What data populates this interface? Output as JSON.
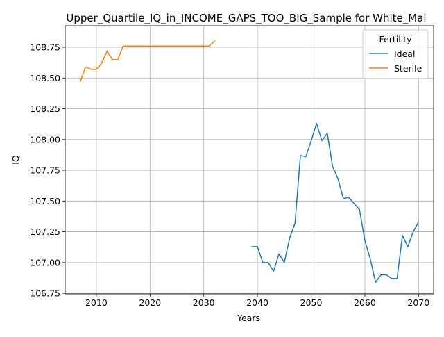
{
  "chart_data": {
    "type": "line",
    "title": "Upper_Quartile_IQ_in_INCOME_GAPS_TOO_BIG_Sample for White_Mal",
    "xlabel": "Years",
    "ylabel": "IQ",
    "xlim": [
      2004.2,
      2072.8
    ],
    "ylim": [
      106.745,
      108.925
    ],
    "xticks": [
      2010,
      2020,
      2030,
      2040,
      2050,
      2060,
      2070
    ],
    "xtick_labels": [
      "2010",
      "2020",
      "2030",
      "2040",
      "2050",
      "2060",
      "2070"
    ],
    "yticks": [
      106.75,
      107.0,
      107.25,
      107.5,
      107.75,
      108.0,
      108.25,
      108.5,
      108.75
    ],
    "ytick_labels": [
      "106.75",
      "107.00",
      "107.25",
      "107.50",
      "107.75",
      "108.00",
      "108.25",
      "108.50",
      "108.75"
    ],
    "grid": true,
    "legend": {
      "title": "Fertility",
      "placement": "top-right"
    },
    "series": [
      {
        "name": "Ideal",
        "color": "#1f77b4",
        "x": [
          2039,
          2040,
          2041,
          2042,
          2043,
          2044,
          2045,
          2046,
          2047,
          2048,
          2049,
          2050,
          2051,
          2052,
          2053,
          2054,
          2055,
          2056,
          2057,
          2058,
          2059,
          2060,
          2061,
          2062,
          2063,
          2064,
          2065,
          2066,
          2067,
          2068,
          2069,
          2070
        ],
        "y": [
          107.13,
          107.13,
          107.0,
          107.0,
          106.93,
          107.07,
          107.0,
          107.2,
          107.32,
          107.87,
          107.86,
          107.99,
          108.13,
          107.99,
          108.05,
          107.78,
          107.68,
          107.52,
          107.53,
          107.48,
          107.43,
          107.18,
          107.03,
          106.84,
          106.9,
          106.9,
          106.87,
          106.87,
          107.22,
          107.13,
          107.25,
          107.33
        ]
      },
      {
        "name": "Sterile",
        "color": "#ff7f0e",
        "x": [
          2007,
          2008,
          2009,
          2010,
          2011,
          2012,
          2013,
          2014,
          2015,
          2016,
          2017,
          2018,
          2019,
          2020,
          2021,
          2022,
          2023,
          2024,
          2025,
          2026,
          2027,
          2028,
          2029,
          2030,
          2031,
          2032
        ],
        "y": [
          108.47,
          108.59,
          108.57,
          108.57,
          108.62,
          108.72,
          108.65,
          108.65,
          108.76,
          108.76,
          108.76,
          108.76,
          108.76,
          108.76,
          108.76,
          108.76,
          108.76,
          108.76,
          108.76,
          108.76,
          108.76,
          108.76,
          108.76,
          108.76,
          108.76,
          108.8
        ]
      }
    ]
  }
}
